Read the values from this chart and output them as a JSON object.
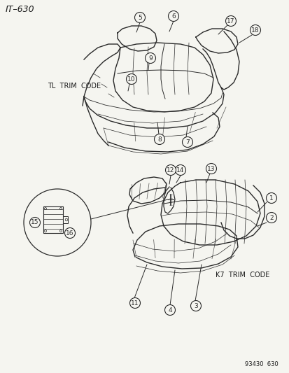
{
  "title": "IT–630",
  "footer": "93430  630",
  "bg_color": "#f5f5f0",
  "text_color": "#1a1a1a",
  "tl_trim_label": "TL  TRIM  CODE",
  "k7_trim_label": "K7  TRIM  CODE"
}
